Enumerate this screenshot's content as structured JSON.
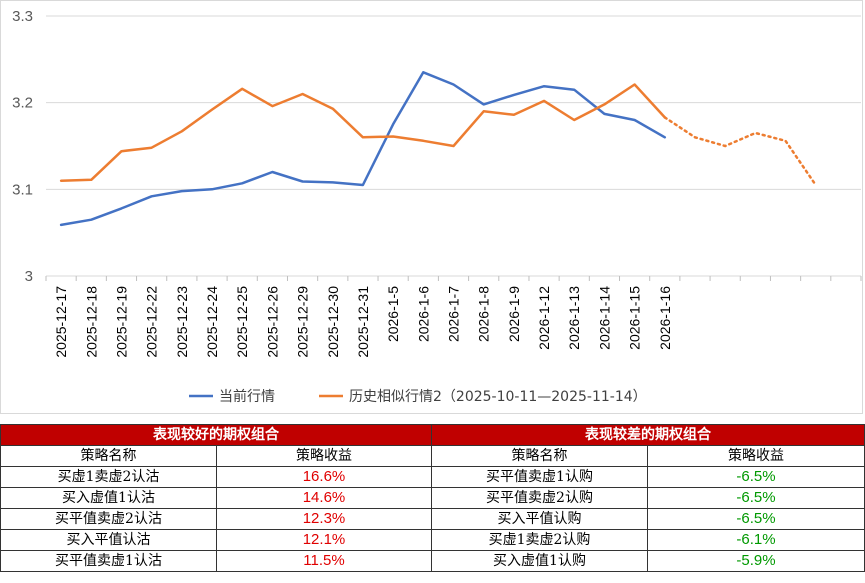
{
  "chart_data": {
    "type": "line",
    "title": "",
    "xlabel": "",
    "ylabel": "",
    "ylim": [
      3.0,
      3.3
    ],
    "yticks": [
      "3",
      "3.1",
      "3.2",
      "3.3"
    ],
    "grid": "horizontal",
    "legend_position": "bottom",
    "categories": [
      "2025-12-17",
      "2025-12-18",
      "2025-12-19",
      "2025-12-22",
      "2025-12-23",
      "2025-12-24",
      "2025-12-25",
      "2025-12-26",
      "2025-12-29",
      "2025-12-30",
      "2025-12-31",
      "2026-1-5",
      "2026-1-6",
      "2026-1-7",
      "2026-1-8",
      "2026-1-9",
      "2026-1-12",
      "2026-1-13",
      "2026-1-14",
      "2026-1-15",
      "2026-1-16",
      "",
      "",
      "",
      "",
      "",
      ""
    ],
    "series": [
      {
        "name": "当前行情",
        "color": "#4472c4",
        "values": [
          3.059,
          3.065,
          3.078,
          3.092,
          3.098,
          3.1,
          3.107,
          3.12,
          3.109,
          3.108,
          3.105,
          3.175,
          3.235,
          3.221,
          3.198,
          3.209,
          3.219,
          3.215,
          3.187,
          3.18,
          3.16,
          null,
          null,
          null,
          null,
          null,
          null
        ]
      },
      {
        "name": "历史相似行情2（2025-10-11—2025-11-14）",
        "color": "#ed7d31",
        "values": [
          3.11,
          3.111,
          3.144,
          3.148,
          3.167,
          3.192,
          3.216,
          3.196,
          3.21,
          3.193,
          3.16,
          3.161,
          3.156,
          3.15,
          3.19,
          3.186,
          3.202,
          3.18,
          3.198,
          3.221,
          3.183,
          3.16,
          3.15,
          3.165,
          3.156,
          3.105,
          null
        ],
        "dashed_from_index": 20
      }
    ]
  },
  "tables": {
    "good": {
      "title": "表现较好的期权组合",
      "col_name": "策略名称",
      "col_value": "策略收益",
      "rows": [
        {
          "name": "买虚1卖虚2认沽",
          "value": "16.6%"
        },
        {
          "name": "买入虚值1认沽",
          "value": "14.6%"
        },
        {
          "name": "买平值卖虚2认沽",
          "value": "12.3%"
        },
        {
          "name": "买入平值认沽",
          "value": "12.1%"
        },
        {
          "name": "买平值卖虚1认沽",
          "value": "11.5%"
        }
      ],
      "value_color": "#e00000"
    },
    "bad": {
      "title": "表现较差的期权组合",
      "col_name": "策略名称",
      "col_value": "策略收益",
      "rows": [
        {
          "name": "买平值卖虚1认购",
          "value": "-6.5%"
        },
        {
          "name": "买平值卖虚2认购",
          "value": "-6.5%"
        },
        {
          "name": "买入平值认购",
          "value": "-6.5%"
        },
        {
          "name": "买虚1卖虚2认购",
          "value": "-6.1%"
        },
        {
          "name": "买入虚值1认购",
          "value": "-5.9%"
        }
      ],
      "value_color": "#009900"
    }
  }
}
